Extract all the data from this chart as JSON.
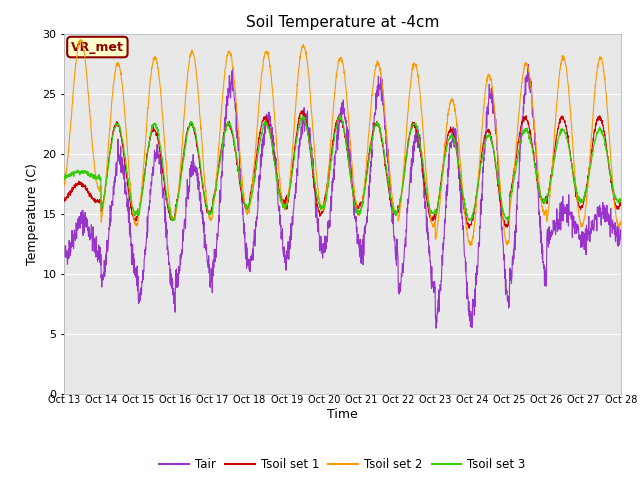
{
  "title": "Soil Temperature at -4cm",
  "xlabel": "Time",
  "ylabel": "Temperature (C)",
  "ylim": [
    0,
    30
  ],
  "bg_color": "#e8e8e8",
  "annotation_text": "VR_met",
  "xtick_labels": [
    "Oct 13",
    "Oct 14",
    "Oct 15",
    "Oct 16",
    "Oct 17",
    "Oct 18",
    "Oct 19",
    "Oct 20",
    "Oct 21",
    "Oct 22",
    "Oct 23",
    "Oct 24",
    "Oct 25",
    "Oct 26",
    "Oct 27",
    "Oct 28"
  ],
  "ytick_vals": [
    0,
    5,
    10,
    15,
    20,
    25,
    30
  ],
  "line_colors": {
    "Tair": "#9933cc",
    "Tsoil_1": "#cc0000",
    "Tsoil_2": "#ff9900",
    "Tsoil_3": "#33cc00"
  },
  "legend_labels": [
    "Tair",
    "Tsoil set 1",
    "Tsoil set 2",
    "Tsoil set 3"
  ],
  "tair_min": [
    11.5,
    9.5,
    7.8,
    9.5,
    10.5,
    11.0,
    11.5,
    12.0,
    11.5,
    8.5,
    6.0,
    7.5,
    9.5,
    13.0,
    13.0
  ],
  "tair_max": [
    14.5,
    19.5,
    20.0,
    19.0,
    26.0,
    23.0,
    23.0,
    23.5,
    25.5,
    21.5,
    21.5,
    24.8,
    26.5,
    15.2,
    15.2
  ],
  "tsoil1_min": [
    16.0,
    14.5,
    14.5,
    15.0,
    15.5,
    16.0,
    15.0,
    15.5,
    15.0,
    14.5,
    14.0,
    14.0,
    16.0,
    15.5,
    15.5
  ],
  "tsoil1_max": [
    17.5,
    22.5,
    22.0,
    22.5,
    22.5,
    23.0,
    23.5,
    23.0,
    22.5,
    22.5,
    22.0,
    22.0,
    23.0,
    23.0,
    23.0
  ],
  "tsoil2_min": [
    17.0,
    14.0,
    14.5,
    14.5,
    15.0,
    15.5,
    15.5,
    15.0,
    15.0,
    14.0,
    12.5,
    12.5,
    15.0,
    14.0,
    14.0
  ],
  "tsoil2_max": [
    29.5,
    27.5,
    28.0,
    28.5,
    28.5,
    28.5,
    29.0,
    28.0,
    27.5,
    27.5,
    24.5,
    26.5,
    27.5,
    28.0,
    28.0
  ],
  "tsoil3_min": [
    18.0,
    15.0,
    14.5,
    15.0,
    15.5,
    15.5,
    15.5,
    15.0,
    15.0,
    15.0,
    14.5,
    14.5,
    16.0,
    16.0,
    16.0
  ],
  "tsoil3_max": [
    18.5,
    22.5,
    22.5,
    22.5,
    22.5,
    22.5,
    23.0,
    23.0,
    22.5,
    22.5,
    21.5,
    21.5,
    22.0,
    22.0,
    22.0
  ]
}
